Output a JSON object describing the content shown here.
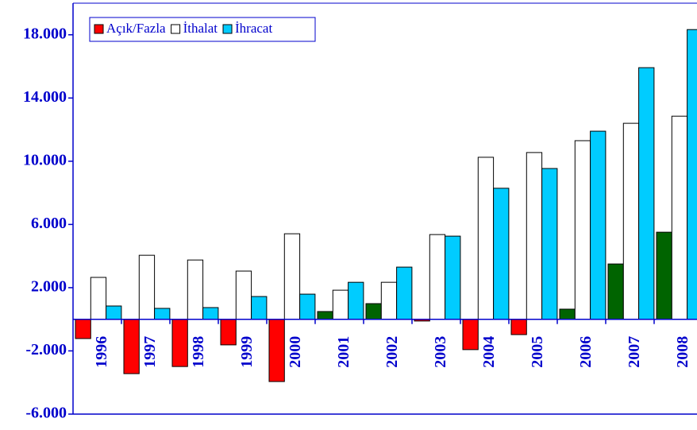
{
  "chart_data": {
    "type": "bar",
    "categories": [
      "1996",
      "1997",
      "1998",
      "1999",
      "2000",
      "2001",
      "2002",
      "2003",
      "2004",
      "2005",
      "2006",
      "2007",
      "2008"
    ],
    "series": [
      {
        "name": "Açık/Fazla",
        "color": "#ff0000",
        "positive_color": "#006400",
        "values": [
          -1220,
          -3440,
          -2990,
          -1620,
          -3940,
          490,
          990,
          -110,
          -1920,
          -970,
          640,
          3500,
          5510
        ]
      },
      {
        "name": "İthalat",
        "color": "#ffffff",
        "values": [
          2650,
          4050,
          3750,
          3050,
          5410,
          1840,
          2340,
          5360,
          10250,
          10550,
          11300,
          12400,
          12850
        ]
      },
      {
        "name": "İhracat",
        "color": "#00ccff",
        "values": [
          840,
          690,
          740,
          1440,
          1590,
          2340,
          3300,
          5260,
          8290,
          9540,
          11900,
          15920,
          18330
        ]
      }
    ],
    "ylim": [
      -6000,
      20000
    ],
    "yticks": [
      {
        "value": -6000,
        "label": "-6.000"
      },
      {
        "value": -2000,
        "label": "-2.000"
      },
      {
        "value": 2000,
        "label": "2.000"
      },
      {
        "value": 6000,
        "label": "6.000"
      },
      {
        "value": 10000,
        "label": "10.000"
      },
      {
        "value": 14000,
        "label": "14.000"
      },
      {
        "value": 18000,
        "label": "18.000"
      }
    ],
    "grid": false,
    "legend": "top-left"
  }
}
